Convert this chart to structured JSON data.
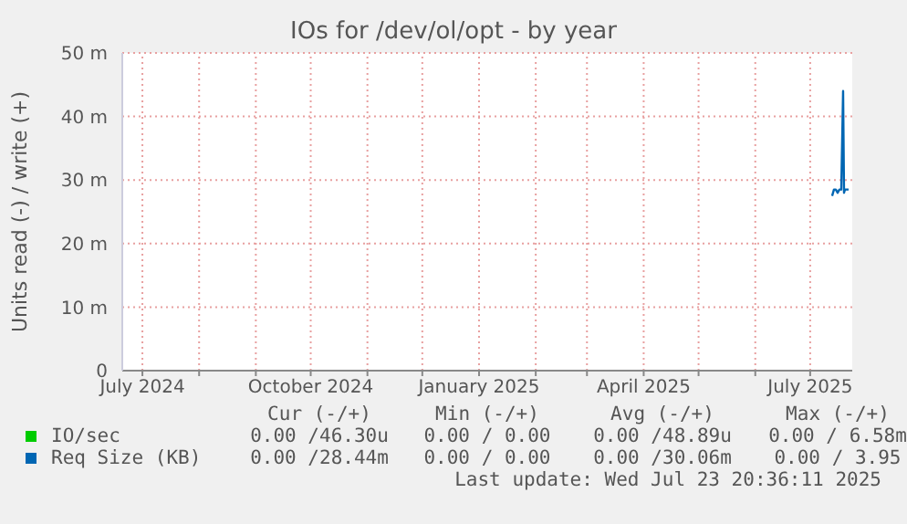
{
  "chart_data": {
    "type": "line",
    "title": "IOs for /dev/ol/opt - by year",
    "ylabel": "Units read (-) / write (+)",
    "xlim": [
      "2024-06-20",
      "2025-07-24"
    ],
    "xticks": [
      {
        "value": "2024-07-01",
        "label": "July 2024"
      },
      {
        "value": "2024-08-01",
        "label": null
      },
      {
        "value": "2024-09-01",
        "label": null
      },
      {
        "value": "2024-10-01",
        "label": "October 2024"
      },
      {
        "value": "2024-11-01",
        "label": null
      },
      {
        "value": "2024-12-01",
        "label": null
      },
      {
        "value": "2025-01-01",
        "label": "January 2025"
      },
      {
        "value": "2025-02-01",
        "label": null
      },
      {
        "value": "2025-03-01",
        "label": null
      },
      {
        "value": "2025-04-01",
        "label": "April 2025"
      },
      {
        "value": "2025-05-01",
        "label": null
      },
      {
        "value": "2025-06-01",
        "label": null
      },
      {
        "value": "2025-07-01",
        "label": "July 2025"
      }
    ],
    "ylim": [
      0,
      50
    ],
    "yticks": [
      0,
      {
        "value": 10,
        "label": "10 m"
      },
      {
        "value": 20,
        "label": "20 m"
      },
      {
        "value": 30,
        "label": "30 m"
      },
      {
        "value": 40,
        "label": "40 m"
      },
      {
        "value": 50,
        "label": "50 m"
      }
    ],
    "grid": true,
    "legend": "bottom",
    "series": [
      {
        "name": "IO/sec",
        "color": "#00cc00"
      },
      {
        "name": "Req Size (KB)",
        "color": "#0066b3",
        "x": [
          "2025-07-13",
          "2025-07-14",
          "2025-07-15",
          "2025-07-16",
          "2025-07-17",
          "2025-07-18",
          "2025-07-19",
          "2025-07-19T12:00",
          "2025-07-20",
          "2025-07-21",
          "2025-07-22"
        ],
        "values": [
          27.5,
          28.5,
          28.5,
          28,
          28.5,
          28.5,
          44,
          28,
          28.5,
          28.5,
          28.5
        ]
      }
    ],
    "annotations": [
      "Cur (-/+)",
      "Min (-/+)",
      "Avg (-/+)",
      "Max (-/+)",
      "0.00 /46.30u",
      "0.00 / 0.00",
      "0.00 /48.89u",
      "0.00 / 6.58m",
      "0.00 /28.44m",
      "0.00 / 0.00",
      "0.00 /30.06m",
      "0.00 / 3.95",
      "Last update: Wed Jul 23 20:36:11 2025"
    ]
  }
}
